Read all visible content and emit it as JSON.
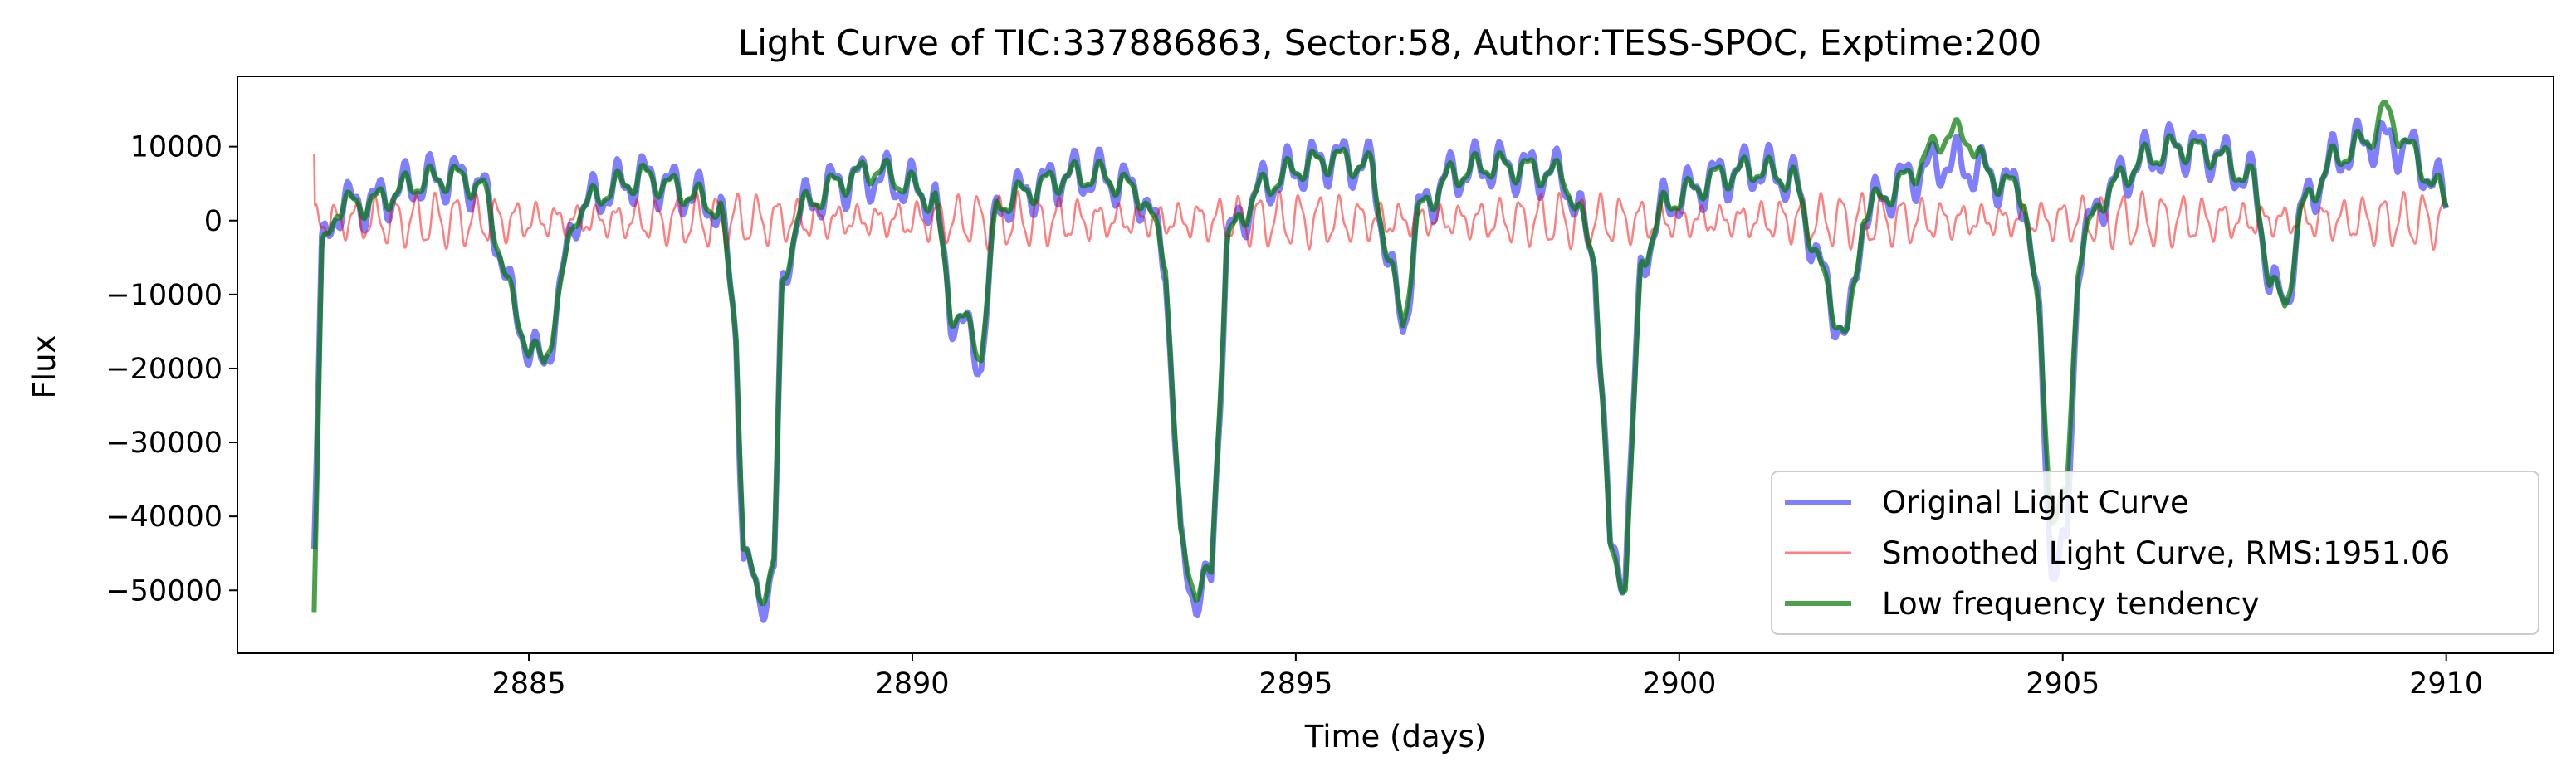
{
  "chart_data": {
    "type": "line",
    "title": "Light Curve of TIC:337886863, Sector:58, Author:TESS-SPOC, Exptime:200",
    "xlabel": "Time (days)",
    "ylabel": "Flux",
    "xlim": [
      2881.2,
      2911.4
    ],
    "ylim": [
      -58500,
      19500
    ],
    "xticks": [
      2885,
      2890,
      2895,
      2900,
      2905,
      2910
    ],
    "yticks": [
      10000,
      0,
      -10000,
      -20000,
      -30000,
      -40000,
      -50000
    ],
    "xtick_labels": [
      "2885",
      "2890",
      "2895",
      "2900",
      "2905",
      "2910"
    ],
    "ytick_labels": [
      "10000",
      "0",
      "−10000",
      "−20000",
      "−30000",
      "−40000",
      "−50000"
    ],
    "grid": false,
    "legend_position": "lower-right",
    "series": [
      {
        "name": "Original Light Curve",
        "color": "#0000ff",
        "baseline": [
          [
            2882.2,
            -43000
          ],
          [
            2882.3,
            -5000
          ],
          [
            2882.5,
            2000
          ],
          [
            2883,
            2500
          ],
          [
            2883.5,
            5000
          ],
          [
            2884,
            6000
          ],
          [
            2884.4,
            4500
          ],
          [
            2884.6,
            -3000
          ],
          [
            2884.8,
            -12000
          ],
          [
            2885.0,
            -17000
          ],
          [
            2885.2,
            -20000
          ],
          [
            2885.4,
            -10000
          ],
          [
            2885.6,
            1000
          ],
          [
            2886,
            4000
          ],
          [
            2886.5,
            6000
          ],
          [
            2887,
            4000
          ],
          [
            2887.5,
            1500
          ],
          [
            2887.7,
            -15000
          ],
          [
            2887.8,
            -45000
          ],
          [
            2888,
            -52000
          ],
          [
            2888.2,
            -47000
          ],
          [
            2888.3,
            -10000
          ],
          [
            2888.5,
            1000
          ],
          [
            2889,
            5000
          ],
          [
            2889.5,
            6000
          ],
          [
            2890,
            4500
          ],
          [
            2890.3,
            2500
          ],
          [
            2890.5,
            -12000
          ],
          [
            2890.7,
            -15000
          ],
          [
            2890.9,
            -19000
          ],
          [
            2891.1,
            2000
          ],
          [
            2891.5,
            4000
          ],
          [
            2892,
            6000
          ],
          [
            2892.5,
            6000
          ],
          [
            2893,
            3500
          ],
          [
            2893.3,
            -5000
          ],
          [
            2893.5,
            -45000
          ],
          [
            2893.7,
            -51000
          ],
          [
            2893.9,
            -49000
          ],
          [
            2894.1,
            -3000
          ],
          [
            2894.5,
            4000
          ],
          [
            2895,
            7000
          ],
          [
            2895.5,
            8500
          ],
          [
            2896,
            7000
          ],
          [
            2896.2,
            -5000
          ],
          [
            2896.4,
            -15000
          ],
          [
            2896.6,
            1000
          ],
          [
            2897,
            6000
          ],
          [
            2897.5,
            7500
          ],
          [
            2898,
            7000
          ],
          [
            2898.5,
            6000
          ],
          [
            2898.9,
            -5000
          ],
          [
            2899.1,
            -45000
          ],
          [
            2899.3,
            -47000
          ],
          [
            2899.5,
            -6000
          ],
          [
            2899.8,
            2000
          ],
          [
            2900.5,
            6000
          ],
          [
            2901,
            7000
          ],
          [
            2901.5,
            5500
          ],
          [
            2901.8,
            -5000
          ],
          [
            2902,
            -12000
          ],
          [
            2902.2,
            -16000
          ],
          [
            2902.4,
            1000
          ],
          [
            2903,
            6000
          ],
          [
            2903.5,
            8000
          ],
          [
            2904,
            6500
          ],
          [
            2904.5,
            3500
          ],
          [
            2904.7,
            -15000
          ],
          [
            2904.85,
            -47000
          ],
          [
            2905.05,
            -45000
          ],
          [
            2905.2,
            -5000
          ],
          [
            2905.5,
            3000
          ],
          [
            2906,
            8000
          ],
          [
            2906.5,
            10000
          ],
          [
            2907,
            9000
          ],
          [
            2907.5,
            5000
          ],
          [
            2907.7,
            -8000
          ],
          [
            2907.9,
            -12000
          ],
          [
            2908.1,
            1000
          ],
          [
            2908.5,
            8000
          ],
          [
            2909,
            11000
          ],
          [
            2909.5,
            10000
          ],
          [
            2910,
            3000
          ]
        ]
      },
      {
        "name": "Smoothed Light Curve, RMS:1951.06",
        "color": "#ff0000",
        "rms": 1951.06
      },
      {
        "name": "Low frequency tendency",
        "color": "#007700",
        "baseline": [
          [
            2882.2,
            -52000
          ],
          [
            2882.3,
            -5000
          ],
          [
            2882.5,
            2000
          ],
          [
            2883,
            2500
          ],
          [
            2883.5,
            5000
          ],
          [
            2884,
            6000
          ],
          [
            2884.4,
            4500
          ],
          [
            2884.6,
            -3000
          ],
          [
            2884.8,
            -12000
          ],
          [
            2885.0,
            -17000
          ],
          [
            2885.2,
            -19500
          ],
          [
            2885.4,
            -10000
          ],
          [
            2885.6,
            1000
          ],
          [
            2886,
            4000
          ],
          [
            2886.5,
            6000
          ],
          [
            2887,
            4000
          ],
          [
            2887.5,
            1500
          ],
          [
            2887.7,
            -15000
          ],
          [
            2887.8,
            -44000
          ],
          [
            2888,
            -51500
          ],
          [
            2888.2,
            -46000
          ],
          [
            2888.3,
            -10000
          ],
          [
            2888.5,
            1000
          ],
          [
            2889,
            5000
          ],
          [
            2889.5,
            7000
          ],
          [
            2890,
            4500
          ],
          [
            2890.3,
            2500
          ],
          [
            2890.5,
            -12000
          ],
          [
            2890.7,
            -14000
          ],
          [
            2890.9,
            -18000
          ],
          [
            2891.1,
            2000
          ],
          [
            2891.5,
            4000
          ],
          [
            2892,
            6000
          ],
          [
            2892.5,
            6000
          ],
          [
            2893,
            3500
          ],
          [
            2893.3,
            -5000
          ],
          [
            2893.5,
            -44000
          ],
          [
            2893.7,
            -50000
          ],
          [
            2893.9,
            -48000
          ],
          [
            2894.1,
            -3000
          ],
          [
            2894.5,
            4000
          ],
          [
            2895,
            7000
          ],
          [
            2895.5,
            8500
          ],
          [
            2896,
            7000
          ],
          [
            2896.2,
            -5000
          ],
          [
            2896.4,
            -14000
          ],
          [
            2896.6,
            1000
          ],
          [
            2897,
            6000
          ],
          [
            2897.5,
            7500
          ],
          [
            2898,
            7000
          ],
          [
            2898.5,
            6000
          ],
          [
            2898.9,
            -5000
          ],
          [
            2899.1,
            -45000
          ],
          [
            2899.3,
            -49000
          ],
          [
            2899.5,
            -6000
          ],
          [
            2899.8,
            2000
          ],
          [
            2900.5,
            6000
          ],
          [
            2901,
            7000
          ],
          [
            2901.5,
            5500
          ],
          [
            2901.8,
            -5000
          ],
          [
            2902,
            -12000
          ],
          [
            2902.2,
            -16000
          ],
          [
            2902.4,
            1000
          ],
          [
            2903,
            6000
          ],
          [
            2903.5,
            12000
          ],
          [
            2903.8,
            11000
          ],
          [
            2904,
            6500
          ],
          [
            2904.5,
            3500
          ],
          [
            2904.7,
            -15000
          ],
          [
            2904.85,
            -40000
          ],
          [
            2905.05,
            -38000
          ],
          [
            2905.2,
            -5000
          ],
          [
            2905.5,
            3000
          ],
          [
            2906,
            8000
          ],
          [
            2906.5,
            10000
          ],
          [
            2907,
            9000
          ],
          [
            2907.5,
            5000
          ],
          [
            2907.7,
            -8000
          ],
          [
            2907.9,
            -12000
          ],
          [
            2908.1,
            1000
          ],
          [
            2908.5,
            8000
          ],
          [
            2909,
            11000
          ],
          [
            2909.2,
            15000
          ],
          [
            2909.5,
            10000
          ],
          [
            2910,
            2500
          ]
        ]
      }
    ]
  }
}
